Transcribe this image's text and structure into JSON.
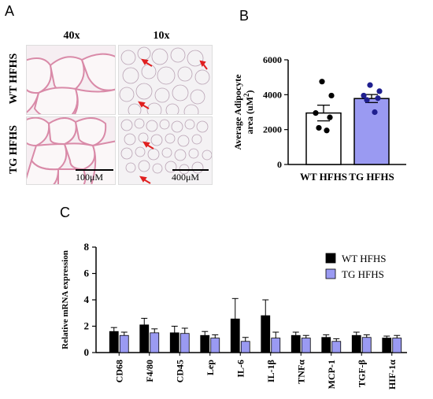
{
  "panelA": {
    "letter": "A",
    "col_labels": [
      "40x",
      "10x"
    ],
    "row_labels": [
      "WT HFHS",
      "TG HFHS"
    ],
    "scale_bars": [
      "100μM",
      "400μM"
    ]
  },
  "chart_data": [
    {
      "letter": "B",
      "type": "bar",
      "categories": [
        "WT HFHS",
        "TG HFHS"
      ],
      "values": [
        2950,
        3780
      ],
      "errors": [
        450,
        230
      ],
      "points": [
        [
          4750,
          3950,
          2950,
          2700,
          2100,
          1950
        ],
        [
          4550,
          4200,
          3950,
          3800,
          3700,
          3000
        ]
      ],
      "bar_fill": [
        "#ffffff",
        "#9a9af2"
      ],
      "point_color": [
        "#000000",
        "#1f1f8f"
      ],
      "ylabel_line1": "Average Adipocyte",
      "ylabel_line2": "area (uM",
      "ylabel_sup": "2",
      "ylabel_end": ")",
      "ylim": [
        0,
        6000
      ],
      "yticks": [
        "0",
        "2000",
        "4000",
        "6000"
      ]
    },
    {
      "letter": "C",
      "type": "bar",
      "categories": [
        "CD68",
        "F4/80",
        "CD45",
        "Lep",
        "IL-6",
        "IL-1β",
        "TNFα",
        "MCP-1",
        "TGF-β",
        "HIF-1α"
      ],
      "series": [
        {
          "name": "WT HFHS",
          "color": "#000000",
          "values": [
            1.6,
            2.1,
            1.5,
            1.3,
            2.55,
            2.8,
            1.3,
            1.15,
            1.3,
            1.1
          ],
          "errors": [
            0.3,
            0.5,
            0.5,
            0.3,
            1.55,
            1.2,
            0.25,
            0.2,
            0.25,
            0.15
          ]
        },
        {
          "name": "TG HFHS",
          "color": "#9a9af2",
          "values": [
            1.3,
            1.5,
            1.45,
            1.1,
            0.85,
            1.1,
            1.1,
            0.85,
            1.15,
            1.1
          ],
          "errors": [
            0.25,
            0.3,
            0.4,
            0.25,
            0.3,
            0.45,
            0.2,
            0.2,
            0.2,
            0.2
          ]
        }
      ],
      "ylabel": "Relative mRNA expression",
      "ylim": [
        0,
        8
      ],
      "yticks": [
        "0",
        "2",
        "4",
        "6",
        "8"
      ],
      "legend": "top-right"
    }
  ]
}
